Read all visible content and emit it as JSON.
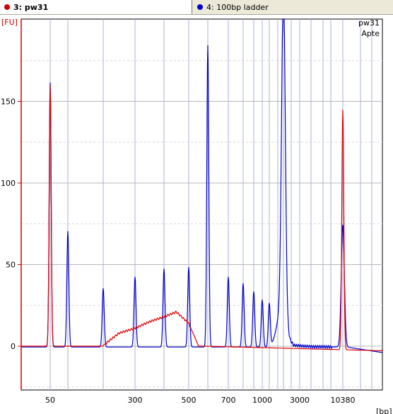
{
  "tabs": [
    {
      "label": "3: pw31",
      "color": "#d40000",
      "active": true
    },
    {
      "label": "4: 100bp ladder",
      "color": "#0000d0",
      "active": false
    }
  ],
  "legend": {
    "sample": "pw31",
    "note": "Apte"
  },
  "chart_data": {
    "type": "line",
    "title": "",
    "xlabel": "[bp]",
    "ylabel": "[FU]",
    "ylim": [
      -27,
      200
    ],
    "grid": true,
    "x_scale": "categorical-log",
    "x_tick_labels": [
      "50",
      "300",
      "500",
      "700",
      "1000",
      "3000",
      "10380"
    ],
    "y_ticks": [
      0,
      50,
      100,
      150
    ],
    "series": [
      {
        "name": "3: pw31",
        "color": "#e00000",
        "peaks_bp": [
          {
            "x": 50,
            "y": 160
          },
          {
            "x": 10380,
            "y": 147
          }
        ],
        "smear": [
          {
            "x": 200,
            "y": 0.5
          },
          {
            "x": 250,
            "y": 8
          },
          {
            "x": 300,
            "y": 11
          },
          {
            "x": 350,
            "y": 15
          },
          {
            "x": 400,
            "y": 18
          },
          {
            "x": 450,
            "y": 21
          },
          {
            "x": 500,
            "y": 14
          },
          {
            "x": 550,
            "y": 0.5
          }
        ]
      },
      {
        "name": "4: 100bp ladder",
        "color": "#0000cc",
        "peaks_bp": [
          {
            "x": 50,
            "y": 162
          },
          {
            "x": 100,
            "y": 71
          },
          {
            "x": 200,
            "y": 36
          },
          {
            "x": 300,
            "y": 43
          },
          {
            "x": 400,
            "y": 48
          },
          {
            "x": 500,
            "y": 49
          },
          {
            "x": 600,
            "y": 185
          },
          {
            "x": 700,
            "y": 43
          },
          {
            "x": 800,
            "y": 39
          },
          {
            "x": 900,
            "y": 34
          },
          {
            "x": 1000,
            "y": 29
          },
          {
            "x": 1200,
            "y": 27
          },
          {
            "x": 1500,
            "y": 200
          },
          {
            "x": 10380,
            "y": 75
          }
        ]
      }
    ]
  }
}
